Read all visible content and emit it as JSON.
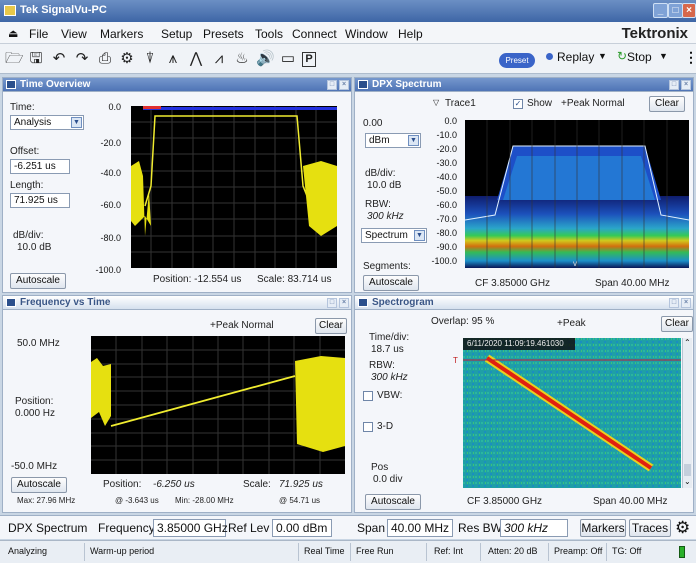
{
  "app": {
    "title": "Tek SignalVu-PC",
    "brand": "Tektronix"
  },
  "menu": [
    "File",
    "View",
    "Markers",
    "Setup",
    "Presets",
    "Tools",
    "Connect",
    "Window",
    "Help"
  ],
  "toolbar": {
    "preset": "Preset",
    "replay": "Replay",
    "stop": "Stop"
  },
  "time_overview": {
    "title": "Time Overview",
    "time_label": "Time:",
    "time_value": "Analysis",
    "offset_label": "Offset:",
    "offset_value": "-6.251 us",
    "length_label": "Length:",
    "length_value": "71.925 us",
    "dbdiv_label": "dB/div:",
    "dbdiv_value": "10.0 dB",
    "autoscale": "Autoscale",
    "yticks": [
      "0.0",
      "-20.0",
      "-40.0",
      "-60.0",
      "-80.0",
      "-100.0"
    ],
    "position": "Position: -12.554 us",
    "scale": "Scale:  83.714 us"
  },
  "dpx": {
    "title": "DPX Spectrum",
    "trace": "Trace1",
    "show": "Show",
    "detection": "+Peak Normal",
    "clear": "Clear",
    "ref": "0.00",
    "unit": "dBm",
    "dbdiv_label": "dB/div:",
    "dbdiv_value": "10.0 dB",
    "rbw_label": "RBW:",
    "rbw_value": "300 kHz",
    "mode": "Spectrum",
    "segments": "Segments:",
    "autoscale": "Autoscale",
    "yticks": [
      "0.0",
      "-10.0",
      "-20.0",
      "-30.0",
      "-40.0",
      "-50.0",
      "-60.0",
      "-70.0",
      "-80.0",
      "-90.0",
      "-100.0"
    ],
    "cf": "CF  3.85000 GHz",
    "span": "Span  40.00 MHz"
  },
  "fvt": {
    "title": "Frequency vs Time",
    "detection": "+Peak Normal",
    "clear": "Clear",
    "top": "50.0 MHz",
    "pos_label": "Position:",
    "pos_value": "0.000 Hz",
    "bottom": "-50.0 MHz",
    "autoscale": "Autoscale",
    "position": "Position:",
    "position_value": "-6.250 us",
    "scale": "Scale:",
    "scale_value": "71.925 us",
    "max": "Max:   27.96 MHz",
    "at1": "@  -3.643 us",
    "min": "Min:   -28.00 MHz",
    "at2": "@  54.71 us"
  },
  "spectrogram": {
    "title": "Spectrogram",
    "overlap": "Overlap: 95 %",
    "detection": "+Peak",
    "clear": "Clear",
    "timediv_label": "Time/div:",
    "timediv_value": "18.7 us",
    "rbw_label": "RBW:",
    "rbw_value": "300 kHz",
    "vbw": "VBW:",
    "threed": "3-D",
    "pos_label": "Pos",
    "pos_value": "0.0 div",
    "autoscale": "Autoscale",
    "timestamp": "6/11/2020 11:09:19.461030",
    "marker": "T",
    "cf": "CF  3.85000 GHz",
    "span": "Span  40.00 MHz"
  },
  "bottom": {
    "measurement": "DPX Spectrum",
    "freq_label": "Frequency",
    "freq_value": "3.85000 GHz",
    "ref_label": "Ref Lev",
    "ref_value": "0.00 dBm",
    "span_label": "Span",
    "span_value": "40.00 MHz",
    "rbw_label": "Res BW",
    "rbw_value": "300 kHz",
    "markers": "Markers",
    "traces": "Traces"
  },
  "status": [
    "Analyzing",
    "Warm-up period",
    "Real Time",
    "Free Run",
    "Ref: Int",
    "Atten: 20 dB",
    "Preamp: Off",
    "TG: Off"
  ]
}
